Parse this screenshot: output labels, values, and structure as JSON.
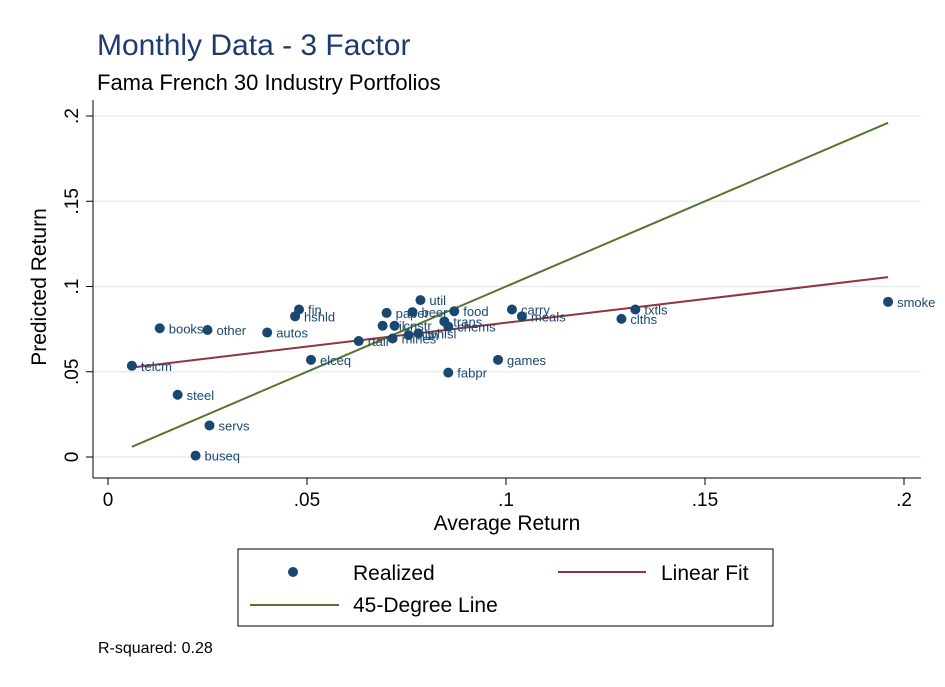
{
  "chart_data": {
    "type": "scatter",
    "title": "Monthly Data - 3 Factor",
    "subtitle": "Fama French 30 Industry Portfolios",
    "xlabel": "Average Return",
    "ylabel": "Predicted Return",
    "xlim": [
      0,
      0.2
    ],
    "ylim": [
      0,
      0.2
    ],
    "xticks": [
      {
        "value": 0,
        "label": "0"
      },
      {
        "value": 0.05,
        "label": ".05"
      },
      {
        "value": 0.1,
        "label": ".1"
      },
      {
        "value": 0.15,
        "label": ".15"
      },
      {
        "value": 0.2,
        "label": ".2"
      }
    ],
    "yticks": [
      {
        "value": 0,
        "label": "0"
      },
      {
        "value": 0.05,
        "label": ".05"
      },
      {
        "value": 0.1,
        "label": ".1"
      },
      {
        "value": 0.15,
        "label": ".15"
      },
      {
        "value": 0.2,
        "label": ".2"
      }
    ],
    "grid": "horizontal",
    "colors": {
      "points": "#1a476f",
      "fit": "#90353b",
      "diagonal": "#55752f"
    },
    "series": [
      {
        "name": "Realized",
        "kind": "points",
        "points": [
          {
            "label": "smoke",
            "x": 0.196,
            "y": 0.091
          },
          {
            "label": "txtls",
            "x": 0.1325,
            "y": 0.0865
          },
          {
            "label": "clths",
            "x": 0.129,
            "y": 0.081
          },
          {
            "label": "carry",
            "x": 0.1015,
            "y": 0.0865
          },
          {
            "label": "meals",
            "x": 0.104,
            "y": 0.0825
          },
          {
            "label": "games",
            "x": 0.098,
            "y": 0.057
          },
          {
            "label": "fabpr",
            "x": 0.0855,
            "y": 0.0495
          },
          {
            "label": "food",
            "x": 0.087,
            "y": 0.0855
          },
          {
            "label": "util",
            "x": 0.0785,
            "y": 0.092
          },
          {
            "label": "trans",
            "x": 0.0845,
            "y": 0.0795
          },
          {
            "label": "chems",
            "x": 0.0855,
            "y": 0.0765
          },
          {
            "label": "whlsl",
            "x": 0.078,
            "y": 0.0725
          },
          {
            "label": "hlth",
            "x": 0.0755,
            "y": 0.0715
          },
          {
            "label": "paper",
            "x": 0.07,
            "y": 0.0845
          },
          {
            "label": "beer",
            "x": 0.0765,
            "y": 0.085
          },
          {
            "label": "cnstr",
            "x": 0.072,
            "y": 0.077
          },
          {
            "label": "oil",
            "x": 0.069,
            "y": 0.077
          },
          {
            "label": "rtail",
            "x": 0.063,
            "y": 0.068
          },
          {
            "label": "mines",
            "x": 0.0715,
            "y": 0.0695
          },
          {
            "label": "elceq",
            "x": 0.051,
            "y": 0.057
          },
          {
            "label": "fin",
            "x": 0.048,
            "y": 0.0865
          },
          {
            "label": "hshld",
            "x": 0.047,
            "y": 0.0825
          },
          {
            "label": "autos",
            "x": 0.04,
            "y": 0.073
          },
          {
            "label": "books",
            "x": 0.013,
            "y": 0.0755
          },
          {
            "label": "other",
            "x": 0.025,
            "y": 0.0745
          },
          {
            "label": "telcm",
            "x": 0.006,
            "y": 0.0535
          },
          {
            "label": "steel",
            "x": 0.0175,
            "y": 0.0365
          },
          {
            "label": "servs",
            "x": 0.0255,
            "y": 0.0185
          },
          {
            "label": "buseq",
            "x": 0.022,
            "y": 0.0008
          }
        ]
      },
      {
        "name": "Linear Fit",
        "kind": "line",
        "x": [
          0.006,
          0.196
        ],
        "y": [
          0.0525,
          0.1055
        ]
      },
      {
        "name": "45-Degree Line",
        "kind": "line",
        "x": [
          0.006,
          0.196
        ],
        "y": [
          0.006,
          0.196
        ]
      }
    ],
    "legend": {
      "position": "bottom",
      "items": [
        {
          "label": "Realized",
          "symbol": "dot",
          "color": "#1a476f"
        },
        {
          "label": "Linear Fit",
          "symbol": "line",
          "color": "#90353b"
        },
        {
          "label": "45-Degree Line",
          "symbol": "line",
          "color": "#55752f"
        }
      ]
    },
    "note": "R-squared: 0.28"
  }
}
